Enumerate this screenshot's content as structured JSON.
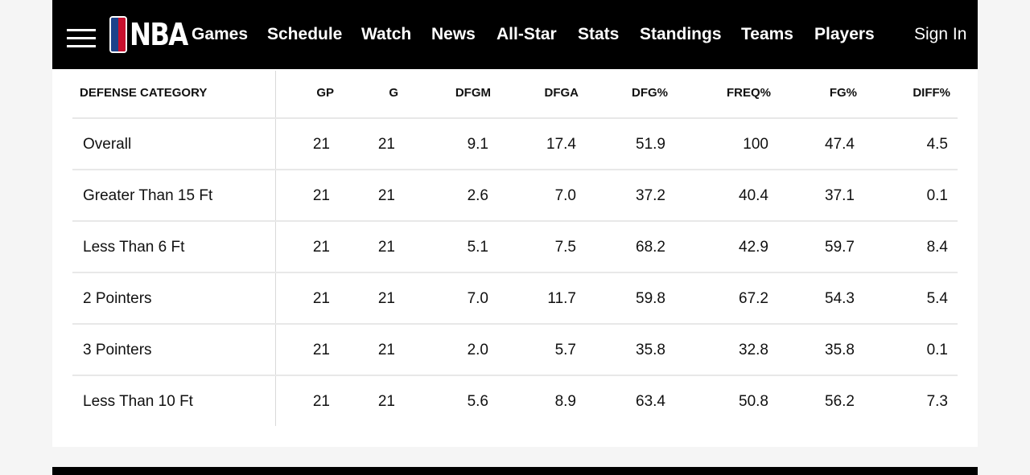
{
  "nav": {
    "brand": "NBA",
    "items": [
      "Games",
      "Schedule",
      "Watch",
      "News",
      "All-Star",
      "Stats",
      "Standings",
      "Teams",
      "Players"
    ],
    "sign_in": "Sign In"
  },
  "table": {
    "columns": [
      "DEFENSE CATEGORY",
      "GP",
      "G",
      "DFGM",
      "DFGA",
      "DFG%",
      "FREQ%",
      "FG%",
      "DIFF%"
    ],
    "rows": [
      [
        "Overall",
        "21",
        "21",
        "9.1",
        "17.4",
        "51.9",
        "100",
        "47.4",
        "4.5"
      ],
      [
        "Greater Than 15 Ft",
        "21",
        "21",
        "2.6",
        "7.0",
        "37.2",
        "40.4",
        "37.1",
        "0.1"
      ],
      [
        "Less Than 6 Ft",
        "21",
        "21",
        "5.1",
        "7.5",
        "68.2",
        "42.9",
        "59.7",
        "8.4"
      ],
      [
        "2 Pointers",
        "21",
        "21",
        "7.0",
        "11.7",
        "59.8",
        "67.2",
        "54.3",
        "5.4"
      ],
      [
        "3 Pointers",
        "21",
        "21",
        "2.0",
        "5.7",
        "35.8",
        "32.8",
        "35.8",
        "0.1"
      ],
      [
        "Less Than 10 Ft",
        "21",
        "21",
        "5.6",
        "8.9",
        "63.4",
        "50.8",
        "56.2",
        "7.3"
      ]
    ]
  },
  "colors": {
    "nav_bg": "#000000",
    "nba_blue": "#1d428a",
    "nba_red": "#c8102e"
  }
}
